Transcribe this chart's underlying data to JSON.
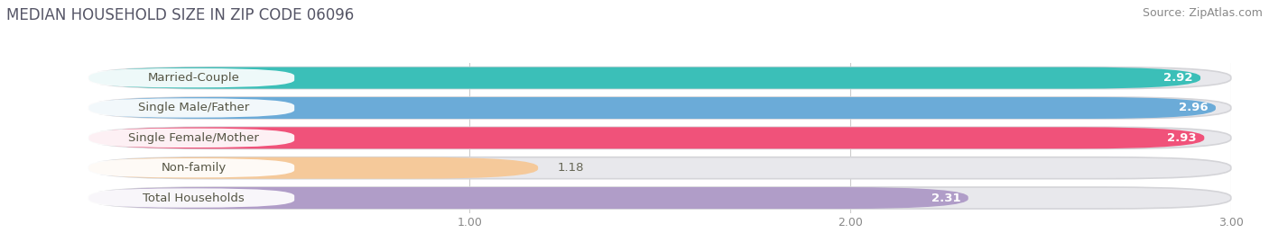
{
  "title": "MEDIAN HOUSEHOLD SIZE IN ZIP CODE 06096",
  "source": "Source: ZipAtlas.com",
  "categories": [
    "Married-Couple",
    "Single Male/Father",
    "Single Female/Mother",
    "Non-family",
    "Total Households"
  ],
  "values": [
    2.92,
    2.96,
    2.93,
    1.18,
    2.31
  ],
  "bar_colors": [
    "#3bbfb8",
    "#6babd8",
    "#f0527a",
    "#f5c99a",
    "#b09dc8"
  ],
  "xmin": 0.0,
  "xmax": 3.0,
  "xticks": [
    1.0,
    2.0,
    3.0
  ],
  "background_color": "#ffffff",
  "outer_bar_color": "#e8e8ec",
  "title_fontsize": 12,
  "label_fontsize": 9.5,
  "value_fontsize": 9.5,
  "source_fontsize": 9
}
